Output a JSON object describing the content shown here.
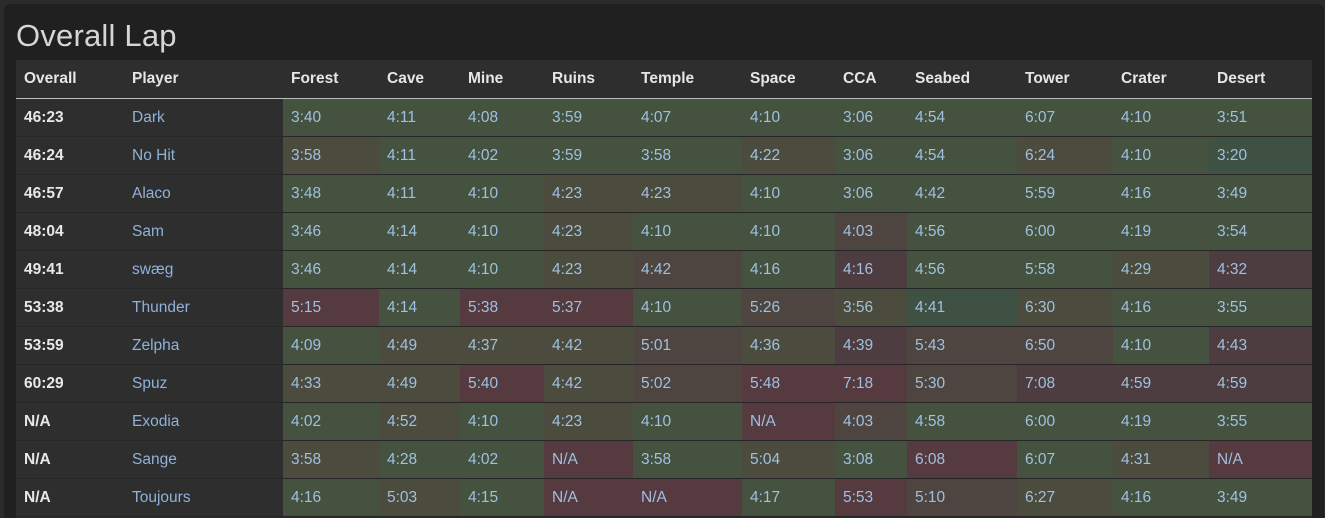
{
  "title": "Overall Lap",
  "headers": [
    "Overall",
    "Player",
    "Forest",
    "Cave",
    "Mine",
    "Ruins",
    "Temple",
    "Space",
    "CCA",
    "Seabed",
    "Tower",
    "Crater",
    "Desert"
  ],
  "colors": {
    "fast": "#3f5143",
    "good": "#45523f",
    "mid": "#4b4c3d",
    "warm": "#4e4540",
    "slow": "#4d3c40",
    "slowest": "#553a40"
  },
  "rows": [
    {
      "overall": "46:23",
      "player": "Dark",
      "times": [
        "3:40",
        "4:11",
        "4:08",
        "3:59",
        "4:07",
        "4:10",
        "3:06",
        "4:54",
        "6:07",
        "4:10",
        "3:51"
      ],
      "tiers": [
        "good",
        "good",
        "good",
        "good",
        "good",
        "good",
        "good",
        "good",
        "good",
        "good",
        "good"
      ]
    },
    {
      "overall": "46:24",
      "player": "No Hit",
      "times": [
        "3:58",
        "4:11",
        "4:02",
        "3:59",
        "3:58",
        "4:22",
        "3:06",
        "4:54",
        "6:24",
        "4:10",
        "3:20"
      ],
      "tiers": [
        "mid",
        "good",
        "good",
        "good",
        "good",
        "mid",
        "good",
        "good",
        "mid",
        "good",
        "fast"
      ]
    },
    {
      "overall": "46:57",
      "player": "Alaco",
      "times": [
        "3:48",
        "4:11",
        "4:10",
        "4:23",
        "4:23",
        "4:10",
        "3:06",
        "4:42",
        "5:59",
        "4:16",
        "3:49"
      ],
      "tiers": [
        "good",
        "good",
        "good",
        "mid",
        "mid",
        "good",
        "good",
        "good",
        "good",
        "good",
        "good"
      ]
    },
    {
      "overall": "48:04",
      "player": "Sam",
      "times": [
        "3:46",
        "4:14",
        "4:10",
        "4:23",
        "4:10",
        "4:10",
        "4:03",
        "4:56",
        "6:00",
        "4:19",
        "3:54"
      ],
      "tiers": [
        "good",
        "good",
        "good",
        "mid",
        "good",
        "good",
        "warm",
        "good",
        "good",
        "good",
        "good"
      ]
    },
    {
      "overall": "49:41",
      "player": "swæg",
      "times": [
        "3:46",
        "4:14",
        "4:10",
        "4:23",
        "4:42",
        "4:16",
        "4:16",
        "4:56",
        "5:58",
        "4:29",
        "4:32"
      ],
      "tiers": [
        "good",
        "good",
        "good",
        "mid",
        "warm",
        "good",
        "slow",
        "good",
        "good",
        "mid",
        "slow"
      ]
    },
    {
      "overall": "53:38",
      "player": "Thunder",
      "times": [
        "5:15",
        "4:14",
        "5:38",
        "5:37",
        "4:10",
        "5:26",
        "3:56",
        "4:41",
        "6:30",
        "4:16",
        "3:55"
      ],
      "tiers": [
        "slowest",
        "good",
        "slowest",
        "slowest",
        "good",
        "warm",
        "mid",
        "fast",
        "mid",
        "good",
        "good"
      ]
    },
    {
      "overall": "53:59",
      "player": "Zelpha",
      "times": [
        "4:09",
        "4:49",
        "4:37",
        "4:42",
        "5:01",
        "4:36",
        "4:39",
        "5:43",
        "6:50",
        "4:10",
        "4:43"
      ],
      "tiers": [
        "good",
        "mid",
        "mid",
        "mid",
        "warm",
        "mid",
        "slow",
        "warm",
        "warm",
        "good",
        "slow"
      ]
    },
    {
      "overall": "60:29",
      "player": "Spuz",
      "times": [
        "4:33",
        "4:49",
        "5:40",
        "4:42",
        "5:02",
        "5:48",
        "7:18",
        "5:30",
        "7:08",
        "4:59",
        "4:59"
      ],
      "tiers": [
        "mid",
        "mid",
        "slowest",
        "mid",
        "warm",
        "slowest",
        "slowest",
        "warm",
        "slow",
        "slow",
        "slow"
      ]
    },
    {
      "overall": "N/A",
      "player": "Exodia",
      "times": [
        "4:02",
        "4:52",
        "4:10",
        "4:23",
        "4:10",
        "N/A",
        "4:03",
        "4:58",
        "6:00",
        "4:19",
        "3:55"
      ],
      "tiers": [
        "good",
        "mid",
        "good",
        "mid",
        "good",
        "slowest",
        "warm",
        "good",
        "good",
        "good",
        "good"
      ]
    },
    {
      "overall": "N/A",
      "player": "Sange",
      "times": [
        "3:58",
        "4:28",
        "4:02",
        "N/A",
        "3:58",
        "5:04",
        "3:08",
        "6:08",
        "6:07",
        "4:31",
        "N/A"
      ],
      "tiers": [
        "mid",
        "good",
        "good",
        "slowest",
        "good",
        "mid",
        "good",
        "slowest",
        "good",
        "mid",
        "slowest"
      ]
    },
    {
      "overall": "N/A",
      "player": "Toujours",
      "times": [
        "4:16",
        "5:03",
        "4:15",
        "N/A",
        "N/A",
        "4:17",
        "5:53",
        "5:10",
        "6:27",
        "4:16",
        "3:49"
      ],
      "tiers": [
        "good",
        "mid",
        "good",
        "slowest",
        "slowest",
        "good",
        "slowest",
        "warm",
        "mid",
        "good",
        "good"
      ]
    }
  ]
}
